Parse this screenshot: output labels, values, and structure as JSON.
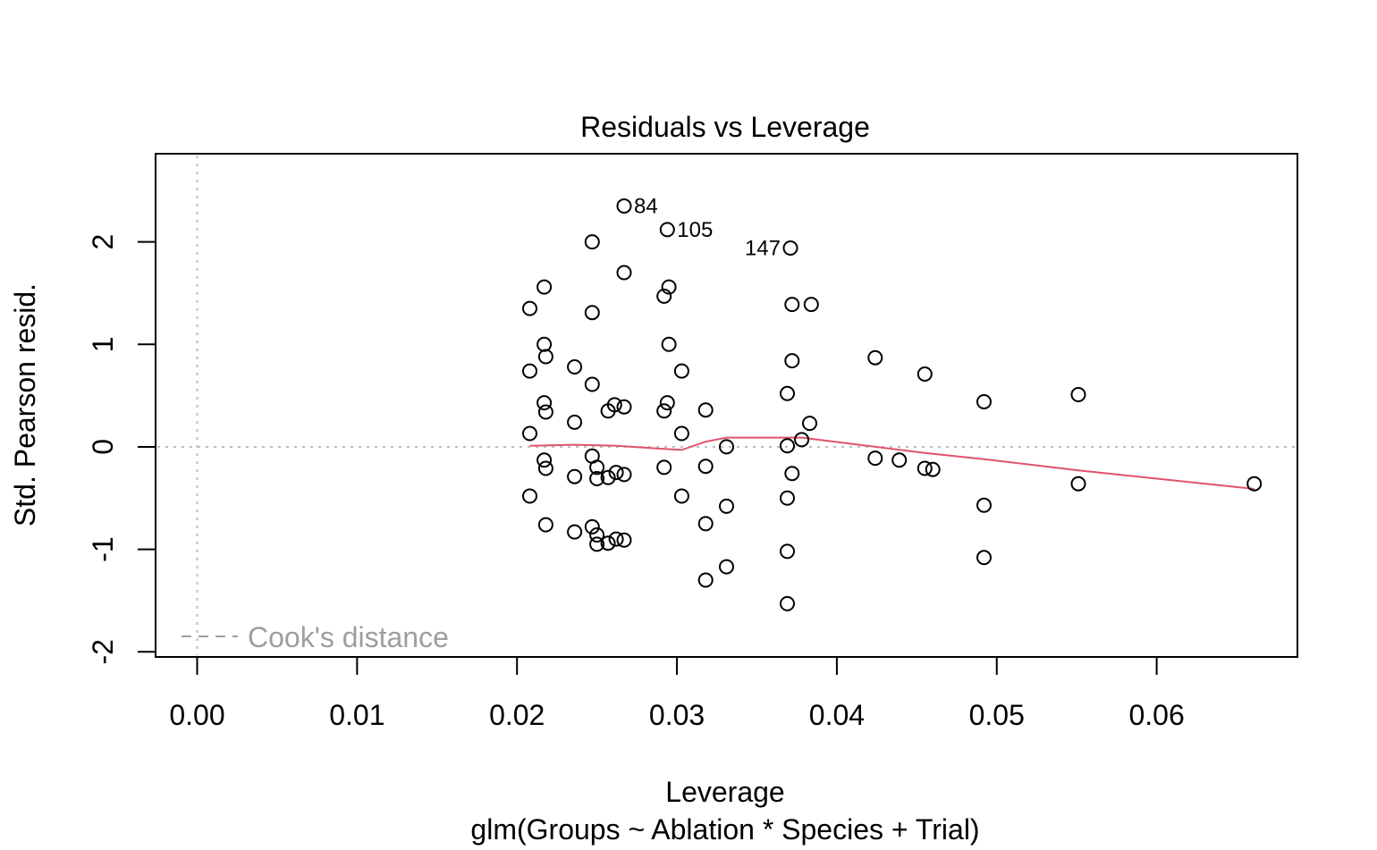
{
  "chart_data": {
    "type": "scatter",
    "title": "Residuals vs Leverage",
    "xlabel": "Leverage",
    "subtitle": "glm(Groups ~ Ablation * Species + Trial)",
    "ylabel": "Std. Pearson resid.",
    "xlim": [
      -0.0026,
      0.0688
    ],
    "ylim": [
      -2.05,
      2.86
    ],
    "x_ticks": [
      {
        "value": 0.0,
        "label": "0.00"
      },
      {
        "value": 0.01,
        "label": "0.01"
      },
      {
        "value": 0.02,
        "label": "0.02"
      },
      {
        "value": 0.03,
        "label": "0.03"
      },
      {
        "value": 0.04,
        "label": "0.04"
      },
      {
        "value": 0.05,
        "label": "0.05"
      },
      {
        "value": 0.06,
        "label": "0.06"
      }
    ],
    "y_ticks": [
      {
        "value": -2,
        "label": "-2"
      },
      {
        "value": -1,
        "label": "-1"
      },
      {
        "value": 0,
        "label": "0"
      },
      {
        "value": 1,
        "label": "1"
      },
      {
        "value": 2,
        "label": "2"
      }
    ],
    "reference_lines": {
      "x": 0,
      "y": 0
    },
    "legend": {
      "label": "Cook's distance",
      "placement": "bottom-left"
    },
    "colors": {
      "points": "#000000",
      "smooth": "#DF536B",
      "reference": "#BEBEBE",
      "legend_text": "#9E9E9E",
      "axis": "#000000"
    },
    "labeled_points": [
      {
        "x": 0.0267,
        "y": 2.35,
        "label": "84",
        "side": "right"
      },
      {
        "x": 0.0294,
        "y": 2.12,
        "label": "105",
        "side": "right"
      },
      {
        "x": 0.0371,
        "y": 1.94,
        "label": "147",
        "side": "left"
      }
    ],
    "points": [
      [
        0.0267,
        2.35
      ],
      [
        0.0294,
        2.12
      ],
      [
        0.0371,
        1.94
      ],
      [
        0.0247,
        2.0
      ],
      [
        0.0267,
        1.7
      ],
      [
        0.0217,
        1.56
      ],
      [
        0.0295,
        1.56
      ],
      [
        0.0292,
        1.47
      ],
      [
        0.0208,
        1.35
      ],
      [
        0.0247,
        1.31
      ],
      [
        0.0372,
        1.39
      ],
      [
        0.0384,
        1.39
      ],
      [
        0.0217,
        1.0
      ],
      [
        0.0295,
        1.0
      ],
      [
        0.0218,
        0.88
      ],
      [
        0.0424,
        0.87
      ],
      [
        0.0372,
        0.84
      ],
      [
        0.0236,
        0.78
      ],
      [
        0.0208,
        0.74
      ],
      [
        0.0303,
        0.74
      ],
      [
        0.0455,
        0.71
      ],
      [
        0.0247,
        0.61
      ],
      [
        0.0369,
        0.52
      ],
      [
        0.0551,
        0.51
      ],
      [
        0.0217,
        0.43
      ],
      [
        0.0294,
        0.43
      ],
      [
        0.0492,
        0.44
      ],
      [
        0.0261,
        0.41
      ],
      [
        0.0267,
        0.39
      ],
      [
        0.0257,
        0.35
      ],
      [
        0.0218,
        0.34
      ],
      [
        0.0292,
        0.35
      ],
      [
        0.0318,
        0.36
      ],
      [
        0.0236,
        0.24
      ],
      [
        0.0383,
        0.23
      ],
      [
        0.0208,
        0.13
      ],
      [
        0.0303,
        0.13
      ],
      [
        0.0378,
        0.07
      ],
      [
        0.0331,
        0.0
      ],
      [
        0.0369,
        0.01
      ],
      [
        0.0247,
        -0.09
      ],
      [
        0.0217,
        -0.13
      ],
      [
        0.0424,
        -0.11
      ],
      [
        0.0439,
        -0.13
      ],
      [
        0.025,
        -0.2
      ],
      [
        0.0218,
        -0.21
      ],
      [
        0.0292,
        -0.2
      ],
      [
        0.0318,
        -0.19
      ],
      [
        0.0455,
        -0.21
      ],
      [
        0.046,
        -0.22
      ],
      [
        0.0262,
        -0.25
      ],
      [
        0.0372,
        -0.26
      ],
      [
        0.0267,
        -0.27
      ],
      [
        0.0236,
        -0.29
      ],
      [
        0.0257,
        -0.3
      ],
      [
        0.025,
        -0.31
      ],
      [
        0.0551,
        -0.36
      ],
      [
        0.0661,
        -0.36
      ],
      [
        0.0208,
        -0.48
      ],
      [
        0.0303,
        -0.48
      ],
      [
        0.0369,
        -0.5
      ],
      [
        0.0331,
        -0.58
      ],
      [
        0.0492,
        -0.57
      ],
      [
        0.0218,
        -0.76
      ],
      [
        0.0318,
        -0.75
      ],
      [
        0.0236,
        -0.83
      ],
      [
        0.0247,
        -0.78
      ],
      [
        0.025,
        -0.86
      ],
      [
        0.0262,
        -0.9
      ],
      [
        0.0267,
        -0.91
      ],
      [
        0.0257,
        -0.94
      ],
      [
        0.025,
        -0.95
      ],
      [
        0.0369,
        -1.02
      ],
      [
        0.0492,
        -1.08
      ],
      [
        0.0331,
        -1.17
      ],
      [
        0.0318,
        -1.3
      ],
      [
        0.0369,
        -1.53
      ]
    ],
    "smooth_line": [
      [
        0.0208,
        0.01
      ],
      [
        0.0236,
        0.02
      ],
      [
        0.0262,
        0.01
      ],
      [
        0.0292,
        -0.02
      ],
      [
        0.0303,
        -0.03
      ],
      [
        0.0318,
        0.05
      ],
      [
        0.0331,
        0.09
      ],
      [
        0.0369,
        0.09
      ],
      [
        0.0378,
        0.09
      ],
      [
        0.0424,
        0.0
      ],
      [
        0.0455,
        -0.06
      ],
      [
        0.0492,
        -0.12
      ],
      [
        0.0551,
        -0.23
      ],
      [
        0.0661,
        -0.41
      ]
    ]
  }
}
